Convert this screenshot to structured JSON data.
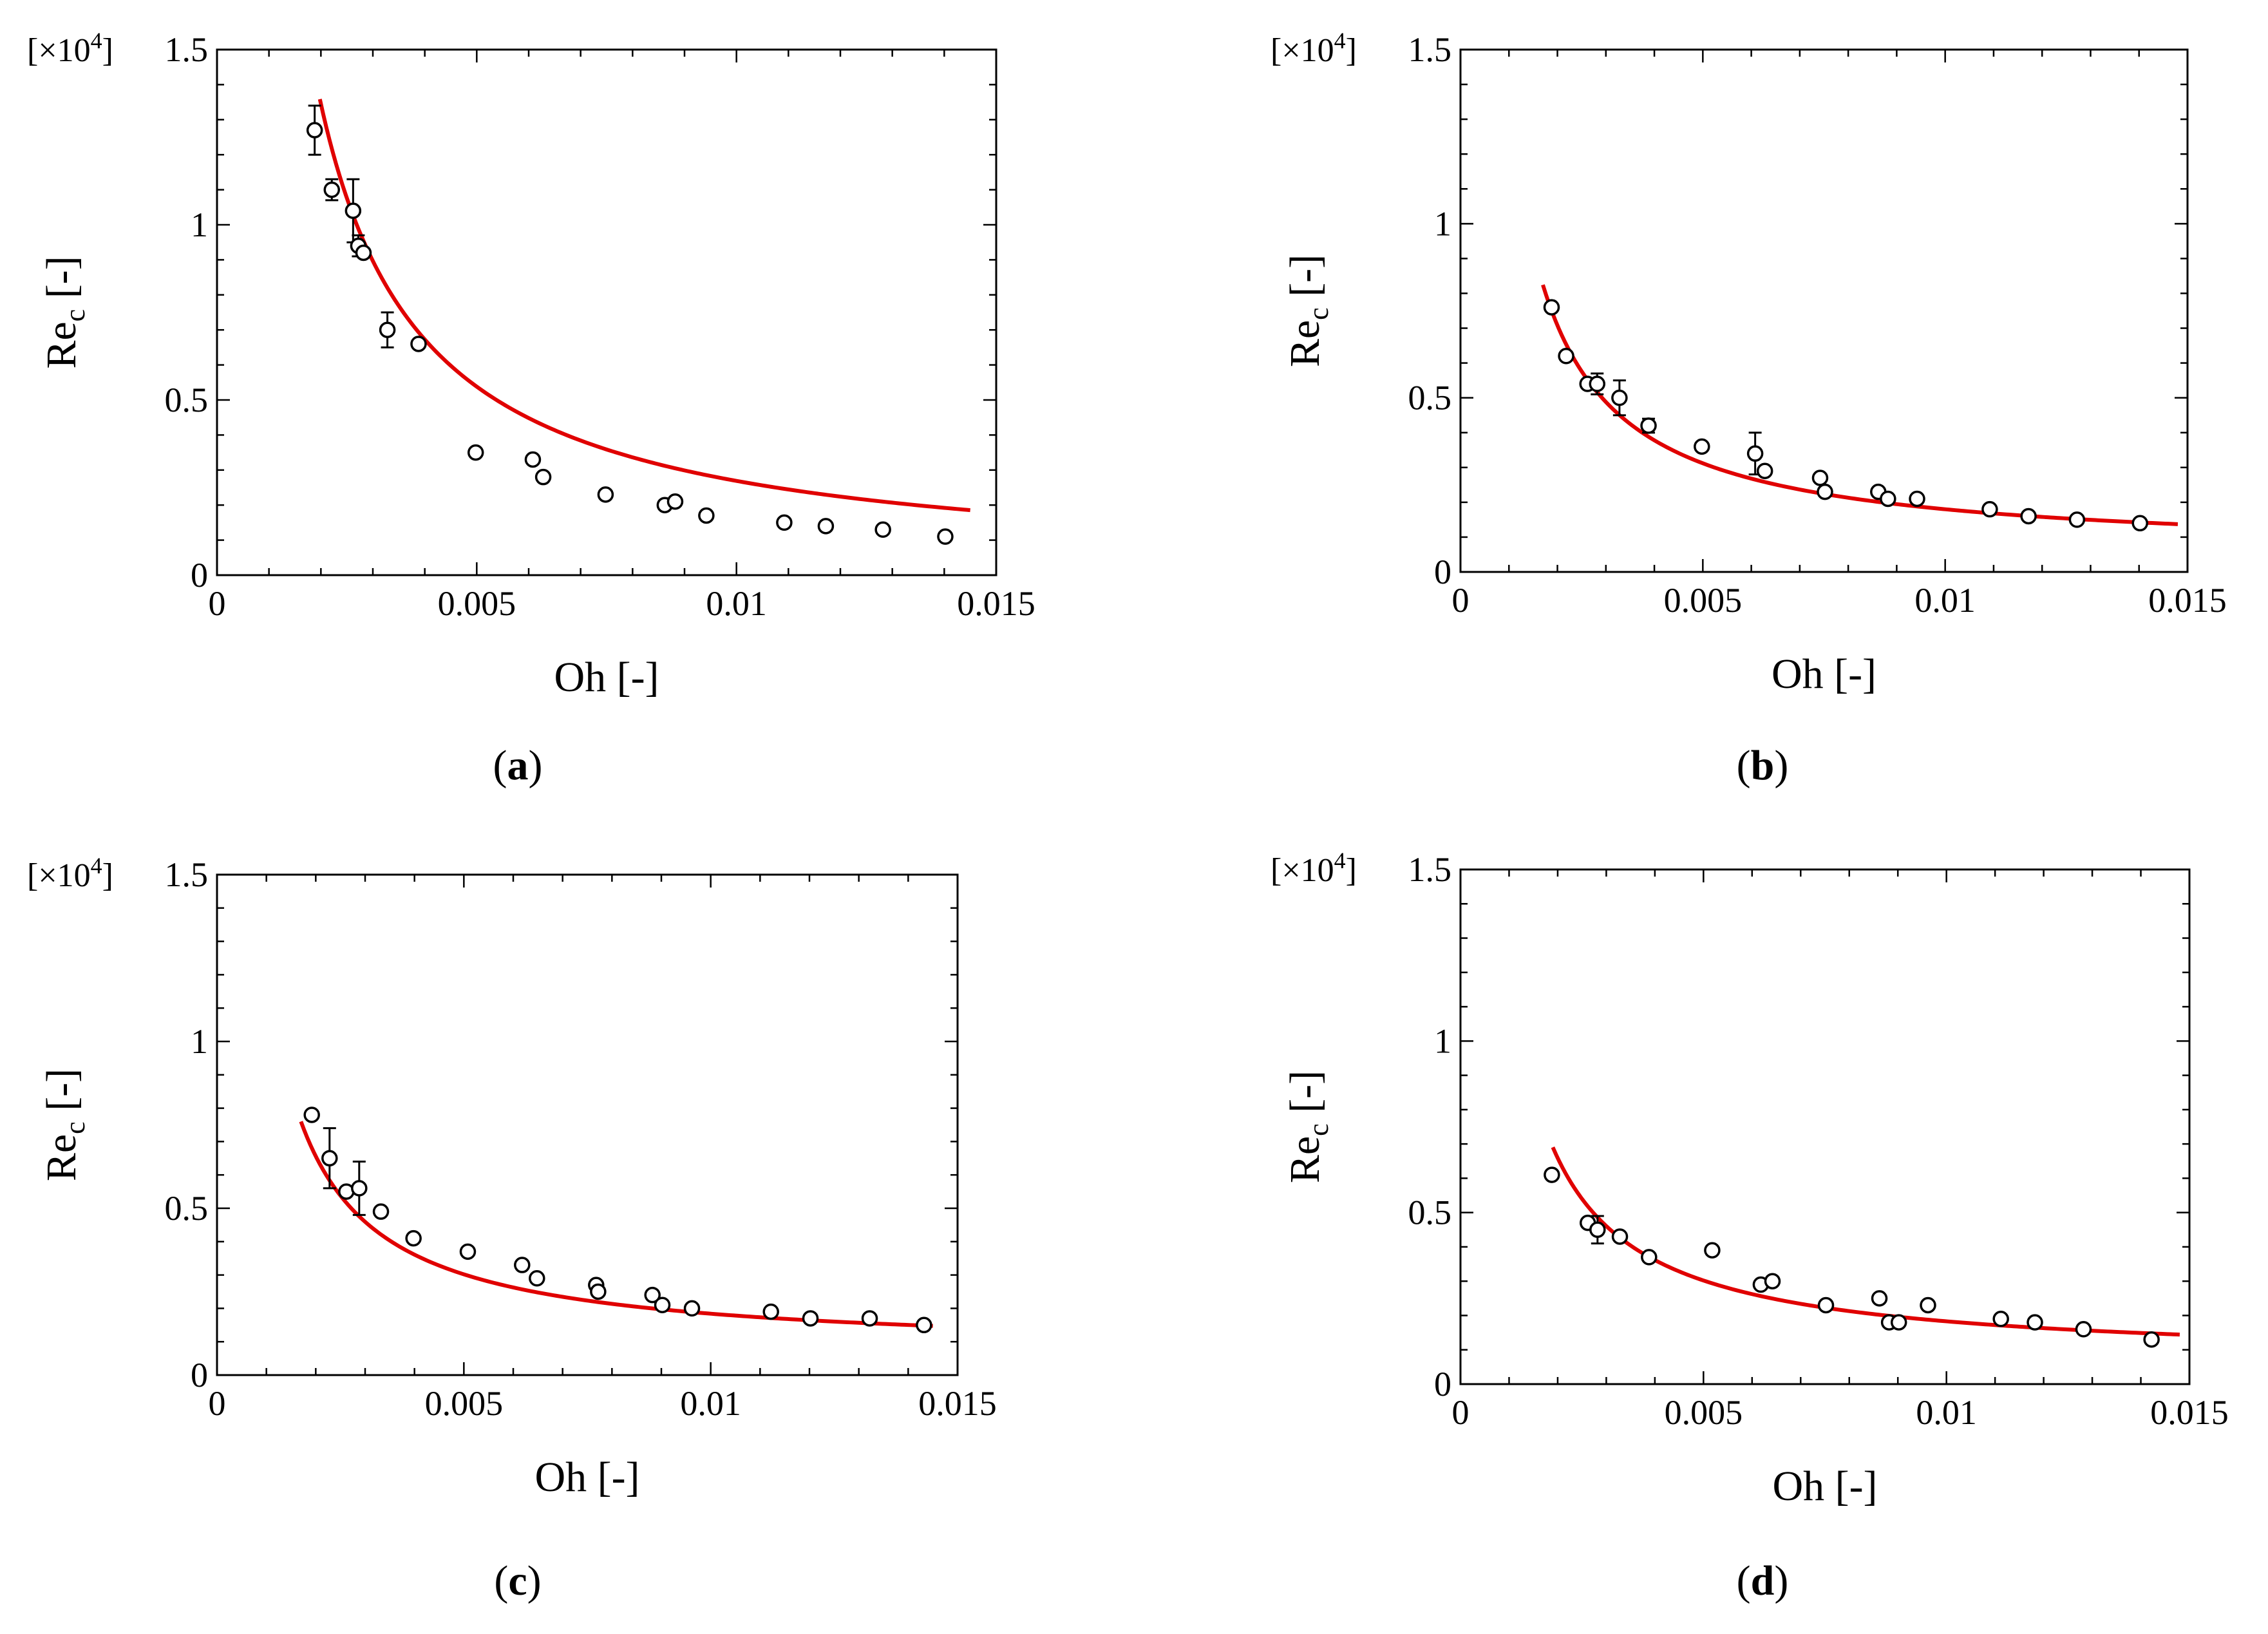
{
  "figure": {
    "scale_label": "[×10",
    "scale_exponent": "4",
    "scale_close": "]",
    "colors": {
      "fit": "#e00000",
      "axes": "#000000",
      "marker_fill": "#ffffff"
    }
  },
  "chart_data": [
    {
      "type": "scatter",
      "panel": "a",
      "caption_open": "(",
      "caption_letter": "a",
      "caption_close": ")",
      "xlabel": "Oh [-]",
      "ylabel_main": "Re",
      "ylabel_sub": "c",
      "ylabel_tail": " [-]",
      "xlim": [
        0,
        0.015
      ],
      "ylim": [
        0,
        1.5
      ],
      "xticks": [
        0,
        0.005,
        0.01,
        0.015
      ],
      "xtick_labels": [
        "0",
        "0.005",
        "0.01",
        "0.015"
      ],
      "yticks": [
        0,
        0.5,
        1,
        1.5
      ],
      "ytick_labels": [
        "0",
        "0.5",
        "1",
        "1.5"
      ],
      "grid": false,
      "fit": {
        "form": "y = a / x",
        "a": 0.00269,
        "x_start": 0.00198,
        "x_end": 0.0145
      },
      "points": [
        {
          "x": 0.00188,
          "y": 1.27,
          "err": 0.07
        },
        {
          "x": 0.00221,
          "y": 1.1,
          "err": 0.03
        },
        {
          "x": 0.00262,
          "y": 1.04,
          "err": 0.09
        },
        {
          "x": 0.00272,
          "y": 0.94,
          "err": 0.03
        },
        {
          "x": 0.00282,
          "y": 0.92,
          "err": 0.0
        },
        {
          "x": 0.00328,
          "y": 0.7,
          "err": 0.05
        },
        {
          "x": 0.00388,
          "y": 0.66,
          "err": 0.0
        },
        {
          "x": 0.00498,
          "y": 0.35,
          "err": 0.0
        },
        {
          "x": 0.00608,
          "y": 0.33,
          "err": 0.0
        },
        {
          "x": 0.00628,
          "y": 0.28,
          "err": 0.0
        },
        {
          "x": 0.00748,
          "y": 0.23,
          "err": 0.0
        },
        {
          "x": 0.00862,
          "y": 0.2,
          "err": 0.0
        },
        {
          "x": 0.00882,
          "y": 0.21,
          "err": 0.0
        },
        {
          "x": 0.00942,
          "y": 0.17,
          "err": 0.0
        },
        {
          "x": 0.01092,
          "y": 0.15,
          "err": 0.0
        },
        {
          "x": 0.01172,
          "y": 0.14,
          "err": 0.0
        },
        {
          "x": 0.01282,
          "y": 0.13,
          "err": 0.0
        },
        {
          "x": 0.01402,
          "y": 0.11,
          "err": 0.0
        }
      ]
    },
    {
      "type": "scatter",
      "panel": "b",
      "caption_open": "(",
      "caption_letter": "b",
      "caption_close": ")",
      "xlabel": "Oh [-]",
      "ylabel_main": "Re",
      "ylabel_sub": "c",
      "ylabel_tail": " [-]",
      "xlim": [
        0,
        0.015
      ],
      "ylim": [
        0,
        1.5
      ],
      "xticks": [
        0,
        0.005,
        0.01,
        0.015
      ],
      "xtick_labels": [
        "0",
        "0.005",
        "0.01",
        "0.015"
      ],
      "yticks": [
        0,
        0.5,
        1,
        1.5
      ],
      "ytick_labels": [
        "0",
        "0.5",
        "1",
        "1.5"
      ],
      "grid": false,
      "fit": {
        "form": "y = a / x + b",
        "a": 0.00132,
        "b": 0.048,
        "x_start": 0.0017,
        "x_end": 0.0148
      },
      "points": [
        {
          "x": 0.00188,
          "y": 0.76,
          "err": 0.0
        },
        {
          "x": 0.00218,
          "y": 0.62,
          "err": 0.0
        },
        {
          "x": 0.00262,
          "y": 0.54,
          "err": 0.0
        },
        {
          "x": 0.00282,
          "y": 0.54,
          "err": 0.03
        },
        {
          "x": 0.00328,
          "y": 0.5,
          "err": 0.05
        },
        {
          "x": 0.00388,
          "y": 0.42,
          "err": 0.02
        },
        {
          "x": 0.00498,
          "y": 0.36,
          "err": 0.0
        },
        {
          "x": 0.00608,
          "y": 0.34,
          "err": 0.06
        },
        {
          "x": 0.00628,
          "y": 0.29,
          "err": 0.0
        },
        {
          "x": 0.00742,
          "y": 0.27,
          "err": 0.0
        },
        {
          "x": 0.00752,
          "y": 0.23,
          "err": 0.0
        },
        {
          "x": 0.00862,
          "y": 0.23,
          "err": 0.0
        },
        {
          "x": 0.00882,
          "y": 0.21,
          "err": 0.0
        },
        {
          "x": 0.00942,
          "y": 0.21,
          "err": 0.0
        },
        {
          "x": 0.01092,
          "y": 0.18,
          "err": 0.0
        },
        {
          "x": 0.01172,
          "y": 0.16,
          "err": 0.0
        },
        {
          "x": 0.01272,
          "y": 0.15,
          "err": 0.0
        },
        {
          "x": 0.01402,
          "y": 0.14,
          "err": 0.0
        }
      ]
    },
    {
      "type": "scatter",
      "panel": "c",
      "caption_open": "(",
      "caption_letter": "c",
      "caption_close": ")",
      "xlabel": "Oh [-]",
      "ylabel_main": "Re",
      "ylabel_sub": "c",
      "ylabel_tail": " [-]",
      "xlim": [
        0,
        0.015
      ],
      "ylim": [
        0,
        1.5
      ],
      "xticks": [
        0,
        0.005,
        0.01,
        0.015
      ],
      "xtick_labels": [
        "0",
        "0.005",
        "0.01",
        "0.015"
      ],
      "yticks": [
        0,
        0.5,
        1,
        1.5
      ],
      "ytick_labels": [
        "0",
        "0.5",
        "1",
        "1.5"
      ],
      "grid": false,
      "fit": {
        "form": "y = a / x + b",
        "a": 0.00118,
        "b": 0.066,
        "x_start": 0.0017,
        "x_end": 0.0145
      },
      "points": [
        {
          "x": 0.00192,
          "y": 0.78,
          "err": 0.0
        },
        {
          "x": 0.00228,
          "y": 0.65,
          "err": 0.09
        },
        {
          "x": 0.00262,
          "y": 0.55,
          "err": 0.0
        },
        {
          "x": 0.00288,
          "y": 0.56,
          "err": 0.08
        },
        {
          "x": 0.00332,
          "y": 0.49,
          "err": 0.0
        },
        {
          "x": 0.00398,
          "y": 0.41,
          "err": 0.0
        },
        {
          "x": 0.00508,
          "y": 0.37,
          "err": 0.0
        },
        {
          "x": 0.00618,
          "y": 0.33,
          "err": 0.0
        },
        {
          "x": 0.00648,
          "y": 0.29,
          "err": 0.0
        },
        {
          "x": 0.00768,
          "y": 0.27,
          "err": 0.0
        },
        {
          "x": 0.00772,
          "y": 0.25,
          "err": 0.0
        },
        {
          "x": 0.00882,
          "y": 0.24,
          "err": 0.0
        },
        {
          "x": 0.00902,
          "y": 0.21,
          "err": 0.0
        },
        {
          "x": 0.00962,
          "y": 0.2,
          "err": 0.0
        },
        {
          "x": 0.01122,
          "y": 0.19,
          "err": 0.0
        },
        {
          "x": 0.01202,
          "y": 0.17,
          "err": 0.0
        },
        {
          "x": 0.01322,
          "y": 0.17,
          "err": 0.0
        },
        {
          "x": 0.01432,
          "y": 0.15,
          "err": 0.0
        }
      ]
    },
    {
      "type": "scatter",
      "panel": "d",
      "caption_open": "(",
      "caption_letter": "d",
      "caption_close": ")",
      "xlabel": "Oh [-]",
      "ylabel_main": "Re",
      "ylabel_sub": "c",
      "ylabel_tail": " [-]",
      "xlim": [
        0,
        0.015
      ],
      "ylim": [
        0,
        1.5
      ],
      "xticks": [
        0,
        0.005,
        0.01,
        0.015
      ],
      "xtick_labels": [
        "0",
        "0.005",
        "0.01",
        "0.015"
      ],
      "yticks": [
        0,
        0.5,
        1,
        1.5
      ],
      "ytick_labels": [
        "0",
        "0.5",
        "1",
        "1.5"
      ],
      "grid": false,
      "fit": {
        "form": "y = a / x + b",
        "a": 0.00119,
        "b": 0.064,
        "x_start": 0.0019,
        "x_end": 0.0148
      },
      "points": [
        {
          "x": 0.00188,
          "y": 0.61,
          "err": 0.0
        },
        {
          "x": 0.00262,
          "y": 0.47,
          "err": 0.0
        },
        {
          "x": 0.00282,
          "y": 0.45,
          "err": 0.04
        },
        {
          "x": 0.00328,
          "y": 0.43,
          "err": 0.0
        },
        {
          "x": 0.00388,
          "y": 0.37,
          "err": 0.0
        },
        {
          "x": 0.00518,
          "y": 0.39,
          "err": 0.0
        },
        {
          "x": 0.00618,
          "y": 0.29,
          "err": 0.0
        },
        {
          "x": 0.00642,
          "y": 0.3,
          "err": 0.0
        },
        {
          "x": 0.00752,
          "y": 0.23,
          "err": 0.0
        },
        {
          "x": 0.00862,
          "y": 0.25,
          "err": 0.0
        },
        {
          "x": 0.00882,
          "y": 0.18,
          "err": 0.0
        },
        {
          "x": 0.00902,
          "y": 0.18,
          "err": 0.0
        },
        {
          "x": 0.00962,
          "y": 0.23,
          "err": 0.0
        },
        {
          "x": 0.01112,
          "y": 0.19,
          "err": 0.0
        },
        {
          "x": 0.01182,
          "y": 0.18,
          "err": 0.0
        },
        {
          "x": 0.01282,
          "y": 0.16,
          "err": 0.0
        },
        {
          "x": 0.01422,
          "y": 0.13,
          "err": 0.0
        }
      ]
    }
  ]
}
